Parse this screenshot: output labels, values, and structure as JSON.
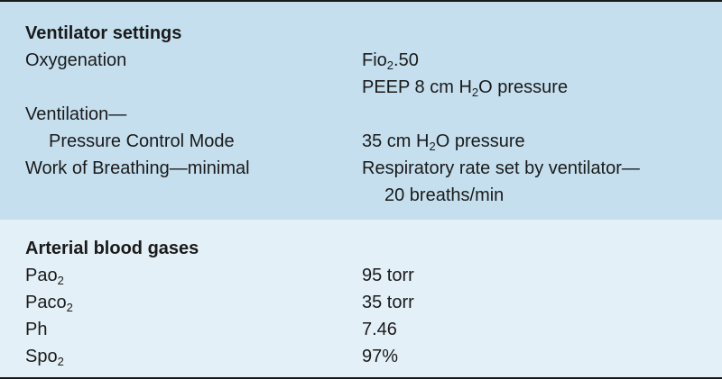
{
  "ventilator_settings": {
    "heading": "Ventilator settings",
    "oxygenation_label": "Oxygenation",
    "fio2_prefix": "Fio",
    "fio2_sub": "2",
    "fio2_value": ".50",
    "peep_prefix": "PEEP 8 cm H",
    "peep_sub": "2",
    "peep_suffix": "O pressure",
    "ventilation_label": "Ventilation—",
    "mode_label": "Pressure Control Mode",
    "mode_prefix": "35 cm H",
    "mode_sub": "2",
    "mode_suffix": "O pressure",
    "wob_label": "Work of Breathing—minimal",
    "rate_line1": "Respiratory rate set by ventilator—",
    "rate_line2": "20 breaths/min"
  },
  "arterial_blood_gases": {
    "heading": "Arterial blood gases",
    "rows": [
      {
        "label": "Pao",
        "sub": "2",
        "value": "95 torr"
      },
      {
        "label": "Paco",
        "sub": "2",
        "value": "35 torr"
      },
      {
        "label": "Ph",
        "sub": "",
        "value": "7.46"
      },
      {
        "label": "Spo",
        "sub": "2",
        "value": "97%"
      }
    ]
  },
  "colors": {
    "top_section_bg": "#c5dfee",
    "bottom_section_bg": "#e4f0f7",
    "rule": "#1a1a1a"
  }
}
